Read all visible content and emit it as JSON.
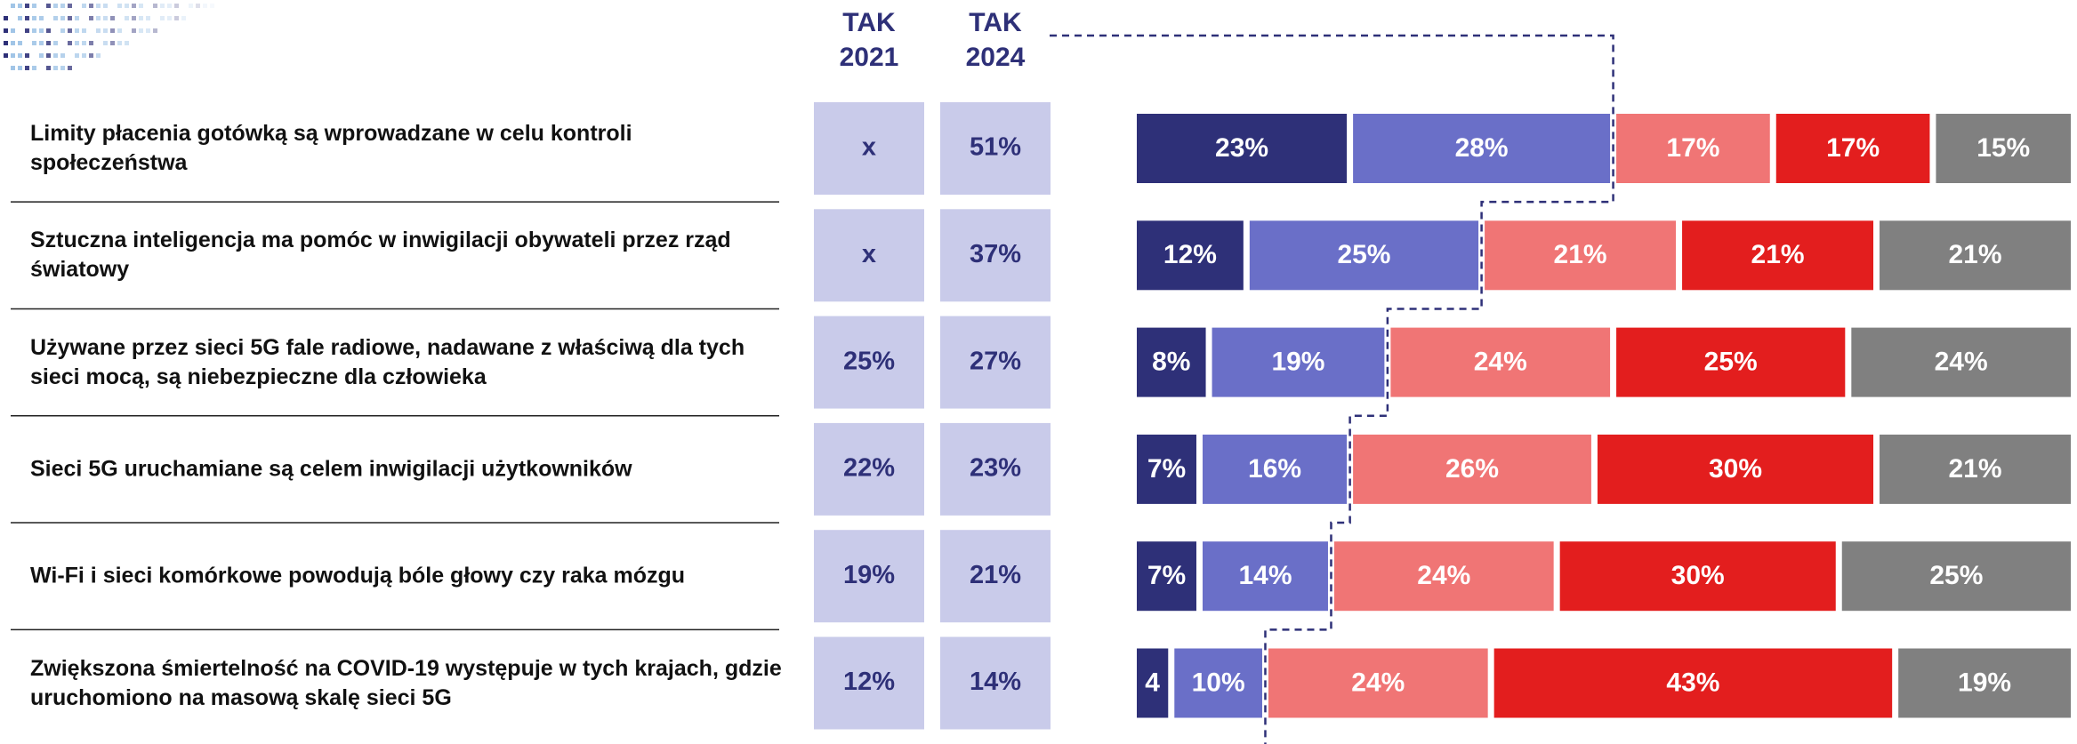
{
  "chart_data": {
    "type": "bar",
    "orientation": "horizontal",
    "stacked": true,
    "categories": [
      "Limity płacenia gotówką są wprowadzane w celu kontroli społeczeństwa",
      "Sztuczna inteligencja ma pomóc w inwigilacji obywateli przez rząd światowy",
      "Używane przez sieci 5G fale radiowe, nadawane z właściwą dla tych sieci mocą, są niebezpieczne dla człowieka",
      "Sieci 5G uruchamiane są celem inwigilacji użytkowników",
      "Wi-Fi i sieci komórkowe powodują bóle głowy czy raka mózgu",
      "Zwiększona śmiertelność na COVID-19 występuje w tych krajach, gdzie uruchomiono na masową skalę sieci 5G"
    ],
    "xlim": [
      0,
      100
    ],
    "series": [
      {
        "color": "#2e3078",
        "values": [
          23,
          12,
          8,
          7,
          7,
          4
        ],
        "value_labels": [
          "23%",
          "12%",
          "8%",
          "7%",
          "7%",
          "4"
        ]
      },
      {
        "color": "#6a6fc8",
        "values": [
          28,
          25,
          19,
          16,
          14,
          10
        ],
        "value_labels": [
          "28%",
          "25%",
          "19%",
          "16%",
          "14%",
          "10%"
        ]
      },
      {
        "color": "#f07575",
        "values": [
          17,
          21,
          24,
          26,
          24,
          24
        ],
        "value_labels": [
          "17%",
          "21%",
          "24%",
          "26%",
          "24%",
          "24%"
        ]
      },
      {
        "color": "#e31e1e",
        "values": [
          17,
          21,
          25,
          30,
          30,
          43
        ],
        "value_labels": [
          "17%",
          "21%",
          "25%",
          "30%",
          "30%",
          "43%"
        ]
      },
      {
        "color": "#808080",
        "values": [
          15,
          21,
          24,
          21,
          25,
          19
        ],
        "value_labels": [
          "15%",
          "21%",
          "24%",
          "21%",
          "25%",
          "19%"
        ]
      }
    ],
    "table": {
      "columns": [
        {
          "header": [
            "TAK",
            "2021"
          ],
          "values": [
            "x",
            "x",
            "25%",
            "22%",
            "19%",
            "12%"
          ]
        },
        {
          "header": [
            "TAK",
            "2024"
          ],
          "values": [
            "51%",
            "37%",
            "27%",
            "23%",
            "21%",
            "14%"
          ]
        }
      ]
    }
  }
}
